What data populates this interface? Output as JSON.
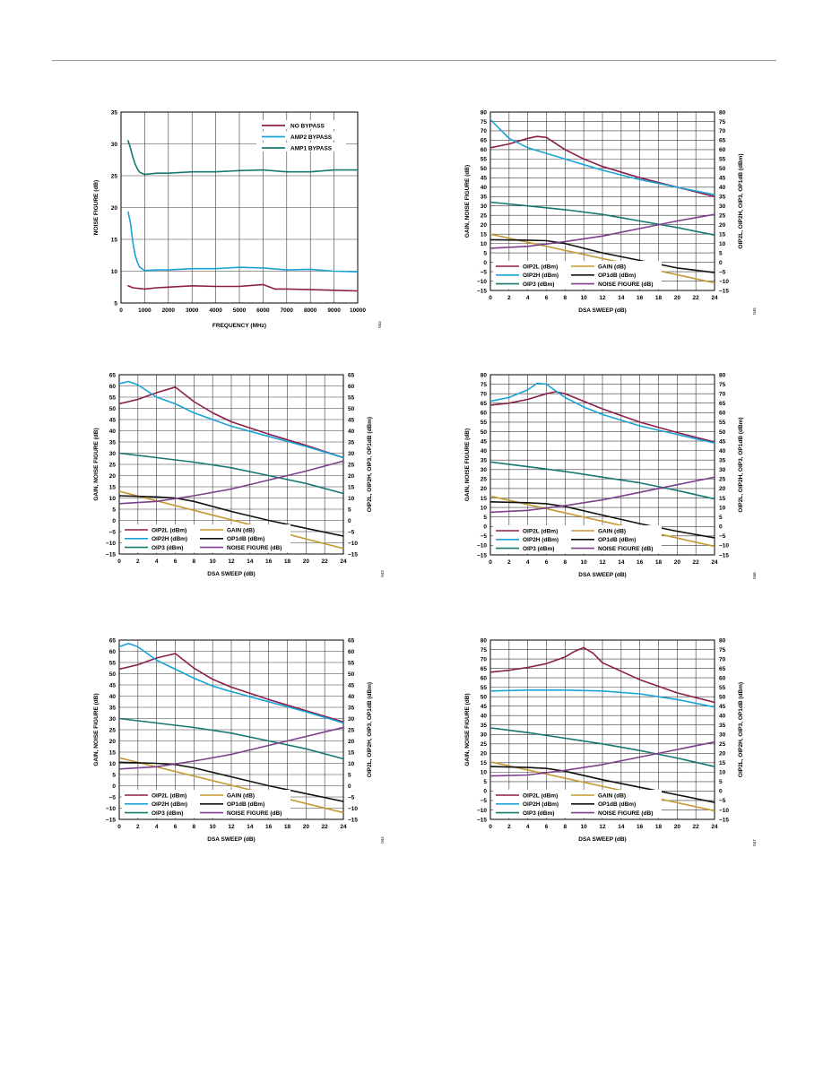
{
  "page": {
    "background": "#ffffff",
    "rule_color": "#9a9a9a"
  },
  "series_colors": {
    "NO BYPASS": "#8b1e4a",
    "AMP2 BYPASS": "#1aa3d6",
    "AMP1 BYPASS": "#177873",
    "OIP2L (dBm)": "#8b1e4a",
    "OIP2H (dBm)": "#1aa3d6",
    "OIP3 (dBm)": "#177873",
    "GAIN (dB)": "#c59a35",
    "OP1dB (dBm)": "#111111",
    "NOISE FIGURE (dB)": "#7d3f8c"
  },
  "chart_data": [
    {
      "type": "line",
      "figure_code": "042",
      "xlabel": "FREQUENCY (MHz)",
      "ylabel": "NOISE FIGURE (dB)",
      "xlim": [
        0,
        10000
      ],
      "ylim": [
        5,
        35
      ],
      "xticks": [
        0,
        1000,
        2000,
        3000,
        4000,
        5000,
        6000,
        7000,
        8000,
        9000,
        10000
      ],
      "yticks": [
        5,
        10,
        15,
        20,
        25,
        30,
        35
      ],
      "grid": true,
      "legend": "top-right",
      "series": [
        {
          "name": "NO BYPASS",
          "x": [
            300,
            500,
            1000,
            1500,
            2000,
            3000,
            4000,
            5000,
            6000,
            6500,
            7000,
            8000,
            9000,
            10000
          ],
          "y": [
            7.7,
            7.4,
            7.2,
            7.4,
            7.5,
            7.7,
            7.6,
            7.6,
            7.9,
            7.2,
            7.2,
            7.1,
            7.0,
            6.9
          ]
        },
        {
          "name": "AMP2 BYPASS",
          "x": [
            300,
            400,
            500,
            600,
            700,
            800,
            1000,
            1500,
            2000,
            3000,
            4000,
            5000,
            6000,
            7000,
            8000,
            9000,
            10000
          ],
          "y": [
            19.3,
            17.5,
            14.5,
            12.5,
            11.3,
            10.6,
            10.1,
            10.2,
            10.2,
            10.4,
            10.4,
            10.6,
            10.5,
            10.2,
            10.3,
            10.0,
            9.9
          ]
        },
        {
          "name": "AMP1 BYPASS",
          "x": [
            300,
            400,
            500,
            600,
            700,
            800,
            1000,
            1500,
            2000,
            3000,
            4000,
            5000,
            6000,
            7000,
            8000,
            9000,
            10000
          ],
          "y": [
            30.5,
            29.3,
            27.9,
            26.8,
            26.0,
            25.5,
            25.2,
            25.4,
            25.4,
            25.6,
            25.6,
            25.8,
            25.9,
            25.6,
            25.6,
            25.9,
            25.9
          ]
        }
      ]
    },
    {
      "type": "line",
      "figure_code": "045",
      "xlabel": "DSA SWEEP (dB)",
      "ylabel": "GAIN, NOISE FIGURE (dB)",
      "ylabel_right": "OIP2L, OIP2H, OIP3, OP1dB (dBm)",
      "xlim": [
        0,
        24
      ],
      "ylim": [
        -15,
        80
      ],
      "xticks": [
        0,
        2,
        4,
        6,
        8,
        10,
        12,
        14,
        16,
        18,
        20,
        22,
        24
      ],
      "yticks": [
        -15,
        -10,
        -5,
        0,
        5,
        10,
        15,
        20,
        25,
        30,
        35,
        40,
        45,
        50,
        55,
        60,
        65,
        70,
        75,
        80
      ],
      "grid": true,
      "legend": "bottom-left",
      "series": [
        {
          "name": "OIP2L (dBm)",
          "x": [
            0,
            2,
            4,
            5,
            6,
            8,
            10,
            12,
            16,
            20,
            24
          ],
          "y": [
            61,
            63,
            66,
            67,
            66.5,
            60,
            55,
            51,
            45,
            40,
            35
          ]
        },
        {
          "name": "OIP2H (dBm)",
          "x": [
            0,
            1,
            2,
            4,
            6,
            8,
            10,
            12,
            16,
            20,
            24
          ],
          "y": [
            76,
            71,
            66,
            61,
            58,
            55,
            52,
            49,
            44,
            40,
            36
          ]
        },
        {
          "name": "OIP3 (dBm)",
          "x": [
            0,
            4,
            8,
            12,
            16,
            20,
            24
          ],
          "y": [
            32,
            30,
            28,
            25.5,
            22,
            18.5,
            14.5
          ]
        },
        {
          "name": "GAIN (dB)",
          "x": [
            0,
            24
          ],
          "y": [
            15,
            -11
          ]
        },
        {
          "name": "OP1dB (dBm)",
          "x": [
            0,
            4,
            6,
            8,
            12,
            16,
            20,
            24
          ],
          "y": [
            12,
            11.8,
            11.5,
            10,
            5,
            1,
            -3,
            -5.5
          ]
        },
        {
          "name": "NOISE FIGURE (dB)",
          "x": [
            0,
            4,
            8,
            12,
            16,
            20,
            24
          ],
          "y": [
            7.5,
            8.5,
            11,
            14,
            18,
            22,
            25.5
          ]
        }
      ]
    },
    {
      "type": "line",
      "figure_code": "043",
      "xlabel": "DSA SWEEP (dB)",
      "ylabel": "GAIN, NOISE FIGURE (dB)",
      "ylabel_right": "OIP2L, OIP2H, OIP3, OP1dB (dBm)",
      "xlim": [
        0,
        24
      ],
      "ylim": [
        -15,
        65
      ],
      "xticks": [
        0,
        2,
        4,
        6,
        8,
        10,
        12,
        14,
        16,
        18,
        20,
        22,
        24
      ],
      "yticks": [
        -15,
        -10,
        -5,
        0,
        5,
        10,
        15,
        20,
        25,
        30,
        35,
        40,
        45,
        50,
        55,
        60,
        65
      ],
      "grid": true,
      "legend": "bottom-left",
      "series": [
        {
          "name": "OIP2L (dBm)",
          "x": [
            0,
            2,
            4,
            6,
            8,
            10,
            12,
            16,
            20,
            24
          ],
          "y": [
            52,
            54,
            57,
            59.5,
            53,
            48,
            44,
            38.5,
            33.5,
            28
          ]
        },
        {
          "name": "OIP2H (dBm)",
          "x": [
            0,
            1,
            2,
            4,
            6,
            8,
            10,
            12,
            16,
            20,
            24
          ],
          "y": [
            61,
            62,
            60.5,
            55,
            52,
            48,
            45,
            42,
            37.5,
            33,
            28
          ]
        },
        {
          "name": "OIP3 (dBm)",
          "x": [
            0,
            4,
            8,
            12,
            16,
            20,
            24
          ],
          "y": [
            30,
            28,
            26,
            23.5,
            20,
            16.5,
            12
          ]
        },
        {
          "name": "GAIN (dB)",
          "x": [
            0,
            24
          ],
          "y": [
            13,
            -12.5
          ]
        },
        {
          "name": "OP1dB (dBm)",
          "x": [
            0,
            4,
            6,
            8,
            12,
            16,
            20,
            24
          ],
          "y": [
            11,
            10.5,
            10,
            8.5,
            4,
            0,
            -3.5,
            -7
          ]
        },
        {
          "name": "NOISE FIGURE (dB)",
          "x": [
            0,
            4,
            8,
            12,
            16,
            20,
            24
          ],
          "y": [
            7.5,
            8.5,
            11,
            14,
            18,
            22,
            26.5
          ]
        }
      ]
    },
    {
      "type": "line",
      "figure_code": "046",
      "xlabel": "DSA SWEEP (dB)",
      "ylabel": "GAIN, NOISE FIGURE (dB)",
      "ylabel_right": "OIP2L, OIP2H, OIP3, OP1dB (dBm)",
      "xlim": [
        0,
        24
      ],
      "ylim": [
        -15,
        80
      ],
      "xticks": [
        0,
        2,
        4,
        6,
        8,
        10,
        12,
        14,
        16,
        18,
        20,
        22,
        24
      ],
      "yticks": [
        -15,
        -10,
        -5,
        0,
        5,
        10,
        15,
        20,
        25,
        30,
        35,
        40,
        45,
        50,
        55,
        60,
        65,
        70,
        75,
        80
      ],
      "grid": true,
      "legend": "bottom-left",
      "series": [
        {
          "name": "OIP2L (dBm)",
          "x": [
            0,
            2,
            4,
            6,
            7,
            8,
            10,
            12,
            16,
            20,
            24
          ],
          "y": [
            64,
            65,
            67,
            70,
            71,
            70,
            66,
            62,
            55,
            49.5,
            44.5
          ]
        },
        {
          "name": "OIP2H (dBm)",
          "x": [
            0,
            2,
            4,
            5,
            6,
            8,
            10,
            12,
            16,
            20,
            24
          ],
          "y": [
            66,
            68,
            72,
            75.5,
            75,
            68,
            63,
            59,
            53,
            48.5,
            44
          ]
        },
        {
          "name": "OIP3 (dBm)",
          "x": [
            0,
            4,
            8,
            12,
            16,
            20,
            24
          ],
          "y": [
            34,
            31.5,
            29,
            26,
            23,
            19,
            14.5
          ]
        },
        {
          "name": "GAIN (dB)",
          "x": [
            0,
            24
          ],
          "y": [
            16,
            -10.5
          ]
        },
        {
          "name": "OP1dB (dBm)",
          "x": [
            0,
            4,
            6,
            8,
            12,
            16,
            20,
            24
          ],
          "y": [
            13,
            12.5,
            12,
            10.5,
            6,
            1.5,
            -2.5,
            -6
          ]
        },
        {
          "name": "NOISE FIGURE (dB)",
          "x": [
            0,
            4,
            8,
            12,
            16,
            20,
            24
          ],
          "y": [
            7.5,
            8.5,
            11,
            14,
            18,
            22,
            26
          ]
        }
      ]
    },
    {
      "type": "line",
      "figure_code": "044",
      "xlabel": "DSA SWEEP (dB)",
      "ylabel": "GAIN, NOISE FIGURE (dB)",
      "ylabel_right": "OIP2L, OIP2H, OIP3, OP1dB (dBm)",
      "xlim": [
        0,
        24
      ],
      "ylim": [
        -15,
        65
      ],
      "xticks": [
        0,
        2,
        4,
        6,
        8,
        10,
        12,
        14,
        16,
        18,
        20,
        22,
        24
      ],
      "yticks": [
        -15,
        -10,
        -5,
        0,
        5,
        10,
        15,
        20,
        25,
        30,
        35,
        40,
        45,
        50,
        55,
        60,
        65
      ],
      "grid": true,
      "legend": "bottom-left",
      "series": [
        {
          "name": "OIP2L (dBm)",
          "x": [
            0,
            2,
            4,
            6,
            8,
            10,
            12,
            16,
            20,
            24
          ],
          "y": [
            52,
            54,
            57,
            59,
            52.5,
            47.5,
            44,
            38.5,
            33.5,
            28.5
          ]
        },
        {
          "name": "OIP2H (dBm)",
          "x": [
            0,
            1,
            2,
            4,
            6,
            8,
            10,
            12,
            16,
            20,
            24
          ],
          "y": [
            62,
            63.5,
            62,
            56,
            52,
            48,
            44.5,
            42,
            37.5,
            33,
            28
          ]
        },
        {
          "name": "OIP3 (dBm)",
          "x": [
            0,
            4,
            8,
            12,
            16,
            20,
            24
          ],
          "y": [
            30,
            28,
            26,
            23.5,
            20,
            16.5,
            12
          ]
        },
        {
          "name": "GAIN (dB)",
          "x": [
            0,
            24
          ],
          "y": [
            12.5,
            -12
          ]
        },
        {
          "name": "OP1dB (dBm)",
          "x": [
            0,
            4,
            6,
            8,
            12,
            16,
            20,
            24
          ],
          "y": [
            10.5,
            10,
            9.5,
            8,
            4,
            0,
            -3.5,
            -7
          ]
        },
        {
          "name": "NOISE FIGURE (dB)",
          "x": [
            0,
            4,
            8,
            12,
            16,
            20,
            24
          ],
          "y": [
            7.5,
            8.5,
            11,
            14,
            18,
            22,
            26
          ]
        }
      ]
    },
    {
      "type": "line",
      "figure_code": "047",
      "xlabel": "DSA SWEEP (dB)",
      "ylabel": "GAIN, NOISE FIGURE (dB)",
      "ylabel_right": "OIP2L, OIP2H, OIP3, OP1dB (dBm)",
      "xlim": [
        0,
        24
      ],
      "ylim": [
        -15,
        80
      ],
      "xticks": [
        0,
        2,
        4,
        6,
        8,
        10,
        12,
        14,
        16,
        18,
        20,
        22,
        24
      ],
      "yticks": [
        -15,
        -10,
        -5,
        0,
        5,
        10,
        15,
        20,
        25,
        30,
        35,
        40,
        45,
        50,
        55,
        60,
        65,
        70,
        75,
        80
      ],
      "grid": true,
      "legend": "bottom-left",
      "series": [
        {
          "name": "OIP2L (dBm)",
          "x": [
            0,
            2,
            4,
            6,
            8,
            9,
            10,
            11,
            12,
            16,
            20,
            24
          ],
          "y": [
            63,
            64,
            65.5,
            67.5,
            71,
            74,
            76,
            73,
            68,
            59,
            52,
            47
          ]
        },
        {
          "name": "OIP2H (dBm)",
          "x": [
            0,
            4,
            8,
            12,
            16,
            20,
            24
          ],
          "y": [
            53,
            53.5,
            53.5,
            53,
            51.5,
            48.5,
            44.5
          ]
        },
        {
          "name": "OIP3 (dBm)",
          "x": [
            0,
            4,
            8,
            12,
            16,
            20,
            24
          ],
          "y": [
            33.5,
            31,
            28,
            25,
            21.5,
            17.5,
            13
          ]
        },
        {
          "name": "GAIN (dB)",
          "x": [
            0,
            24
          ],
          "y": [
            15.5,
            -10.5
          ]
        },
        {
          "name": "OP1dB (dBm)",
          "x": [
            0,
            4,
            6,
            8,
            12,
            16,
            20,
            24
          ],
          "y": [
            13,
            12.5,
            12,
            10.5,
            6,
            2,
            -2,
            -6
          ]
        },
        {
          "name": "NOISE FIGURE (dB)",
          "x": [
            0,
            4,
            8,
            12,
            16,
            20,
            24
          ],
          "y": [
            8,
            8.5,
            11,
            14,
            18,
            22,
            26
          ]
        }
      ]
    }
  ]
}
